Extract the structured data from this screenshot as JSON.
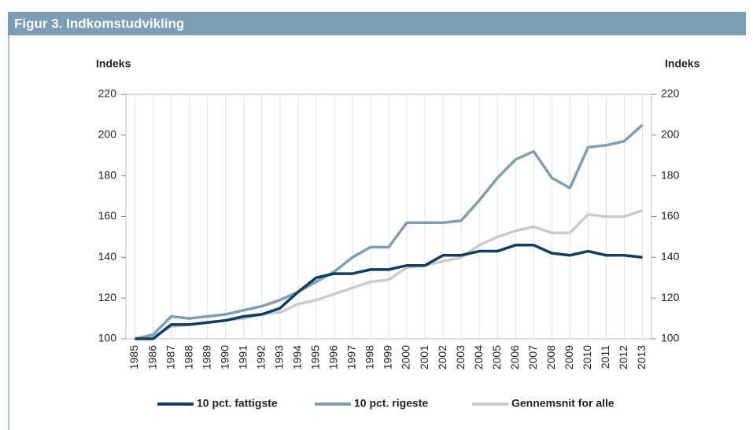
{
  "chart_data": {
    "type": "line",
    "title": "Figur 3. Indkomstudvikling",
    "y_label": "Indeks",
    "y2_label": "Indeks",
    "categories": [
      "1985",
      "1986",
      "1987",
      "1988",
      "1989",
      "1990",
      "1991",
      "1992",
      "1993",
      "1994",
      "1995",
      "1996",
      "1997",
      "1998",
      "1999",
      "2000",
      "2001",
      "2002",
      "2003",
      "2004",
      "2005",
      "2006",
      "2007",
      "2008",
      "2009",
      "2010",
      "2011",
      "2012",
      "2013"
    ],
    "series": [
      {
        "name": "10 pct. fattigste",
        "color": "#0e3f63",
        "values": [
          100,
          100,
          107,
          107,
          108,
          109,
          111,
          112,
          115,
          123,
          130,
          132,
          132,
          134,
          134,
          136,
          136,
          141,
          141,
          143,
          143,
          146,
          146,
          142,
          141,
          143,
          141,
          141,
          140
        ]
      },
      {
        "name": "10 pct. rigeste",
        "color": "#7d9fb6",
        "values": [
          100,
          102,
          111,
          110,
          111,
          112,
          114,
          116,
          119,
          123,
          128,
          133,
          140,
          145,
          145,
          157,
          157,
          157,
          158,
          168,
          179,
          188,
          192,
          179,
          174,
          194,
          195,
          197,
          205
        ]
      },
      {
        "name": "Gennemsnit for alle",
        "color": "#c9cbcc",
        "values": [
          100,
          101,
          106,
          107,
          108,
          109,
          110,
          112,
          113,
          117,
          119,
          122,
          125,
          128,
          129,
          135,
          136,
          138,
          140,
          146,
          150,
          153,
          155,
          152,
          152,
          161,
          160,
          160,
          163
        ]
      }
    ],
    "ylim": [
      100,
      220
    ],
    "yticks": [
      100,
      120,
      140,
      160,
      180,
      200,
      220
    ],
    "y2lim": [
      100,
      220
    ],
    "y2ticks": [
      100,
      120,
      140,
      160,
      180,
      200,
      220
    ],
    "legend": "bottom"
  }
}
